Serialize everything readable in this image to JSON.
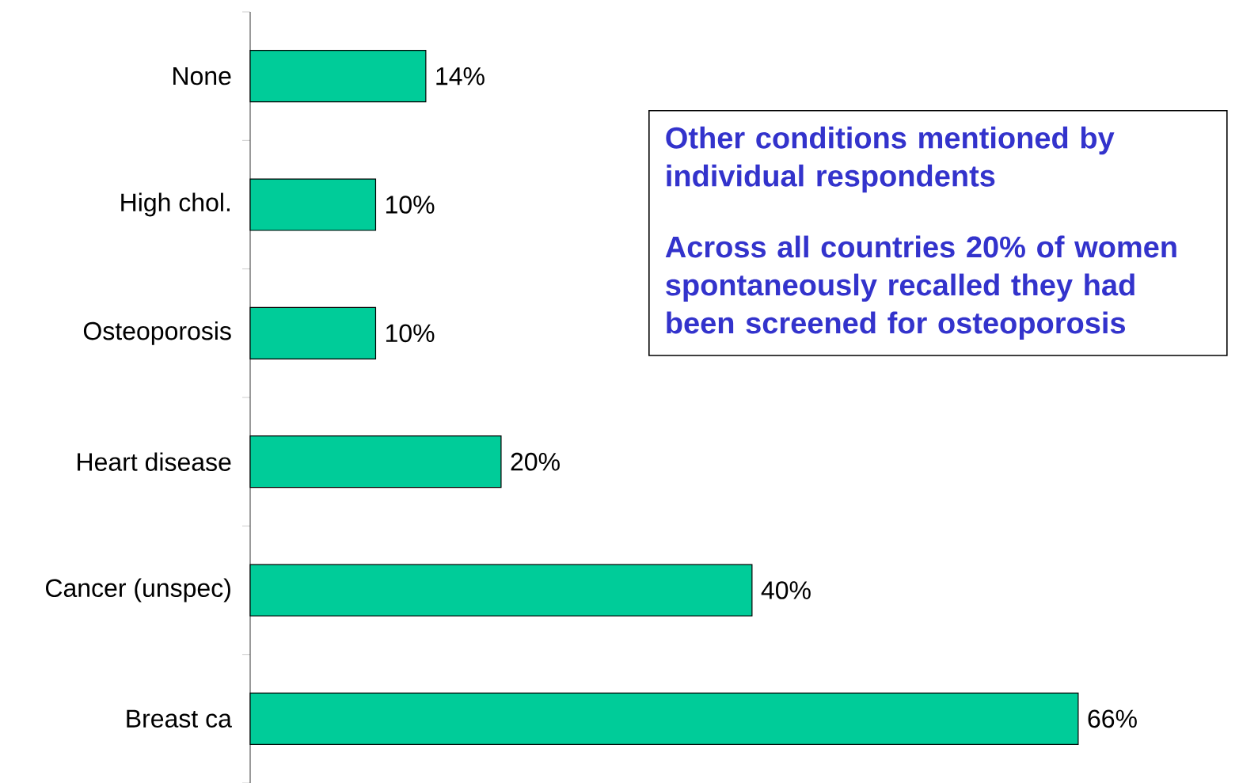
{
  "chart_data": {
    "type": "bar",
    "orientation": "horizontal",
    "categories": [
      "None",
      "High chol.",
      "Osteoporosis",
      "Heart disease",
      "Cancer (unspec)",
      "Breast ca"
    ],
    "values": [
      14,
      10,
      10,
      20,
      40,
      66
    ],
    "value_labels": [
      "14%",
      "10%",
      "10%",
      "20%",
      "40%",
      "66%"
    ],
    "color": "#00cc99",
    "annotations": [
      "Other conditions mentioned by individual respondents",
      "Across all countries 20% of women spontaneously recalled they had been screened for osteoporosis"
    ]
  }
}
